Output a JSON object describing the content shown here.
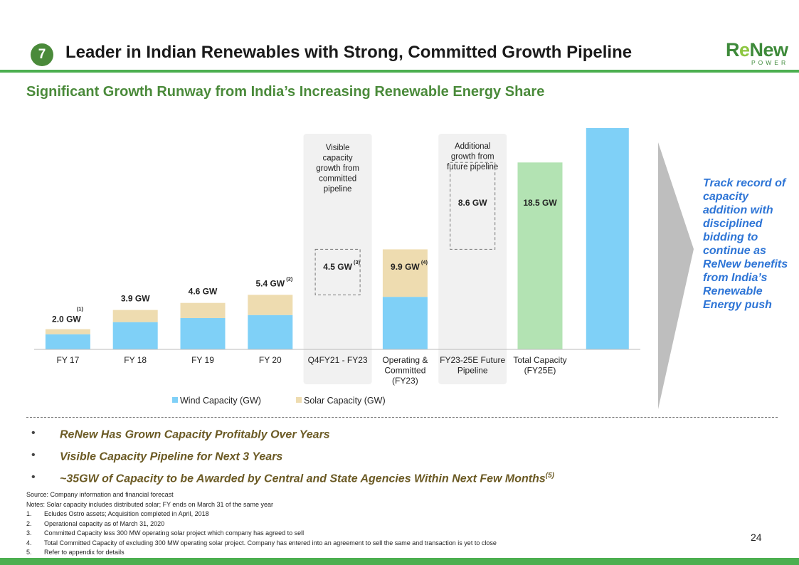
{
  "header": {
    "badge": "7",
    "title": "Leader in Indian Renewables with Strong, Committed Growth Pipeline",
    "logo_main": "ReNew",
    "logo_sub": "POWER",
    "subtitle": "Significant Growth Runway from India’s Increasing Renewable Energy Share"
  },
  "colors": {
    "wind": "#7fd0f7",
    "solar": "#eedcb0",
    "total": "#b3e3b3",
    "brand_green": "#4caf50",
    "callout_blue": "#2e75d6",
    "panel": "#f1f1f1",
    "arrow": "#a9d3a9"
  },
  "chart_data": {
    "type": "bar",
    "categories": [
      "FY 17",
      "FY 18",
      "FY 19",
      "FY 20",
      "Q4FY21 - FY23",
      "Operating & Committed (FY23)",
      "FY23-25E Future Pipeline",
      "Total Capacity (FY25E)"
    ],
    "series": [
      {
        "name": "Wind Capacity (GW)",
        "values": [
          1.5,
          2.7,
          3.1,
          3.4,
          null,
          5.2,
          null,
          null
        ]
      },
      {
        "name": "Solar Capacity (GW)",
        "values": [
          0.5,
          1.2,
          1.5,
          2.0,
          null,
          4.7,
          null,
          null
        ]
      }
    ],
    "waterfall_boxes": [
      {
        "category": "Q4FY21 - FY23",
        "base": 5.4,
        "value": 4.5
      },
      {
        "category": "FY23-25E Future Pipeline",
        "base": 9.9,
        "value": 8.6
      }
    ],
    "total": {
      "category": "Total Capacity (FY25E)",
      "value": 18.5
    },
    "growth_arrow_value": 25,
    "bar_labels": [
      {
        "text": "2.0 GW",
        "sup": "(1)"
      },
      {
        "text": "3.9 GW",
        "sup": ""
      },
      {
        "text": "4.6 GW",
        "sup": ""
      },
      {
        "text": "5.4 GW",
        "sup": "(2)"
      },
      {
        "text": "4.5 GW",
        "sup": "(3)"
      },
      {
        "text": "9.9 GW",
        "sup": "(4)"
      },
      {
        "text": "8.6 GW",
        "sup": ""
      },
      {
        "text": "18.5 GW",
        "sup": ""
      }
    ],
    "panel_notes": [
      {
        "lines": [
          "Visible",
          "capacity",
          "growth from",
          "committed",
          "pipeline"
        ]
      },
      {
        "lines": [
          "Additional",
          "growth from",
          "future pipeline"
        ]
      }
    ],
    "category_label_lines": [
      [
        "FY 17"
      ],
      [
        "FY 18"
      ],
      [
        "FY 19"
      ],
      [
        "FY 20"
      ],
      [
        "Q4FY21 - FY23"
      ],
      [
        "Operating &",
        "Committed",
        "(FY23)"
      ],
      [
        "FY23-25E Future",
        "Pipeline"
      ],
      [
        "Total Capacity",
        "(FY25E)"
      ]
    ],
    "legend": [
      "Wind Capacity (GW)",
      "Solar Capacity (GW)"
    ],
    "legend_position": "bottom",
    "ylim": [
      0,
      27
    ],
    "grid": false
  },
  "callout": "Track record of capacity addition with disciplined bidding to continue as ReNew benefits from India’s Renewable Energy push",
  "bullets": [
    {
      "text": "ReNew Has Grown Capacity Profitably Over Years",
      "sup": ""
    },
    {
      "text": "Visible Capacity Pipeline for Next 3 Years",
      "sup": ""
    },
    {
      "text": "~35GW of Capacity to be Awarded by Central and State Agencies Within Next Few Months",
      "sup": "(5)"
    }
  ],
  "bullet_marker": "•",
  "source": {
    "source_line": "Source: Company information and financial forecast",
    "notes_line": "Notes: Solar capacity includes distributed solar; FY ends on March 31 of the same year",
    "footnotes": [
      {
        "num": "1.",
        "text": "Ecludes Ostro assets; Acquisition completed in April, 2018"
      },
      {
        "num": "2.",
        "text": "Operational capacity as of March 31, 2020"
      },
      {
        "num": "3.",
        "text": "Committed Capacity less 300 MW operating solar project which company has agreed to sell"
      },
      {
        "num": "4.",
        "text": "Total Committed Capacity of excluding 300 MW operating solar project. Company has entered into an agreement to sell the same and transaction is yet to close"
      },
      {
        "num": "5.",
        "text": "Refer to appendix for details"
      }
    ]
  },
  "page_number": "24"
}
